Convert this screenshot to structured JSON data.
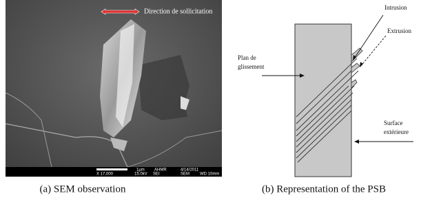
{
  "panel_a": {
    "direction_label": "Direction de sollicitation",
    "scale_bar": "1µm",
    "operator": "AHMR",
    "date": "4/14/2011",
    "magnification": "X 17,000",
    "voltage": "15.0kV",
    "detector": "SEI",
    "instrument": "SEM",
    "working_distance": "WD 10mm",
    "caption": "(a) SEM observation"
  },
  "panel_b": {
    "intrusion": "Intrusion",
    "extrusion": "Extrusion",
    "slip_plane_line1": "Plan de",
    "slip_plane_line2": "glissement",
    "surface_line1": "Surface",
    "surface_line2": "extérieure",
    "caption": "(b) Representation of the PSB"
  }
}
